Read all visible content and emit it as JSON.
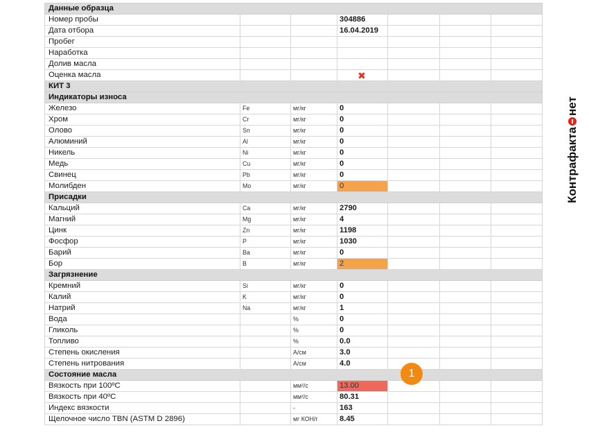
{
  "report": {
    "rows": [
      {
        "type": "section",
        "label": "Данные образца"
      },
      {
        "type": "data",
        "label": "Номер пробы",
        "symbol": "",
        "unit": "",
        "value": "304886"
      },
      {
        "type": "data",
        "label": "Дата отбора",
        "symbol": "",
        "unit": "",
        "value": "16.04.2019"
      },
      {
        "type": "data",
        "label": "Пробег",
        "symbol": "",
        "unit": "",
        "value": ""
      },
      {
        "type": "data",
        "label": "Наработка",
        "symbol": "",
        "unit": "",
        "value": ""
      },
      {
        "type": "data",
        "label": "Долив масла",
        "symbol": "",
        "unit": "",
        "value": ""
      },
      {
        "type": "data",
        "label": "Оценка масла",
        "symbol": "",
        "unit": "",
        "value": "",
        "mark": "✖"
      },
      {
        "type": "section",
        "label": "КИТ 3"
      },
      {
        "type": "section",
        "label": "Индикаторы износа"
      },
      {
        "type": "data",
        "label": "Железо",
        "symbol": "Fe",
        "unit": "мг/кг",
        "value": "0"
      },
      {
        "type": "data",
        "label": "Хром",
        "symbol": "Cr",
        "unit": "мг/кг",
        "value": "0"
      },
      {
        "type": "data",
        "label": "Олово",
        "symbol": "Sn",
        "unit": "мг/кг",
        "value": "0"
      },
      {
        "type": "data",
        "label": "Алюминий",
        "symbol": "Al",
        "unit": "мг/кг",
        "value": "0"
      },
      {
        "type": "data",
        "label": "Никель",
        "symbol": "Ni",
        "unit": "мг/кг",
        "value": "0"
      },
      {
        "type": "data",
        "label": "Медь",
        "symbol": "Cu",
        "unit": "мг/кг",
        "value": "0"
      },
      {
        "type": "data",
        "label": "Свинец",
        "symbol": "Pb",
        "unit": "мг/кг",
        "value": "0"
      },
      {
        "type": "data",
        "label": "Молибден",
        "symbol": "Mo",
        "unit": "мг/кг",
        "value": "0",
        "highlight": "orange"
      },
      {
        "type": "section",
        "label": "Присадки"
      },
      {
        "type": "data",
        "label": "Кальций",
        "symbol": "Ca",
        "unit": "мг/кг",
        "value": "2790"
      },
      {
        "type": "data",
        "label": "Магний",
        "symbol": "Mg",
        "unit": "мг/кг",
        "value": "4"
      },
      {
        "type": "data",
        "label": "Цинк",
        "symbol": "Zn",
        "unit": "мг/кг",
        "value": "1198"
      },
      {
        "type": "data",
        "label": "Фосфор",
        "symbol": "P",
        "unit": "мг/кг",
        "value": "1030"
      },
      {
        "type": "data",
        "label": "Барий",
        "symbol": "Ba",
        "unit": "мг/кг",
        "value": "0"
      },
      {
        "type": "data",
        "label": "Бор",
        "symbol": "B",
        "unit": "мг/кг",
        "value": "2",
        "highlight": "orange"
      },
      {
        "type": "section",
        "label": "Загрязнение"
      },
      {
        "type": "data",
        "label": "Кремний",
        "symbol": "Si",
        "unit": "мг/кг",
        "value": "0"
      },
      {
        "type": "data",
        "label": "Калий",
        "symbol": "K",
        "unit": "мг/кг",
        "value": "0"
      },
      {
        "type": "data",
        "label": "Натрий",
        "symbol": "Na",
        "unit": "мг/кг",
        "value": "1"
      },
      {
        "type": "data",
        "label": "Вода",
        "symbol": "",
        "unit": "%",
        "value": "0"
      },
      {
        "type": "data",
        "label": "Гликоль",
        "symbol": "",
        "unit": "%",
        "value": "0"
      },
      {
        "type": "data",
        "label": "Топливо",
        "symbol": "",
        "unit": "%",
        "value": "0.0"
      },
      {
        "type": "data",
        "label": "Степень окисления",
        "symbol": "",
        "unit": "А/см",
        "value": "3.0"
      },
      {
        "type": "data",
        "label": "Степень нитрования",
        "symbol": "",
        "unit": "А/см",
        "value": "4.0"
      },
      {
        "type": "section",
        "label": "Состояние масла"
      },
      {
        "type": "data",
        "label": "Вязкость при 100ºC",
        "symbol": "",
        "unit": "мм²/с",
        "value": "13.00",
        "highlight": "red"
      },
      {
        "type": "data",
        "label": "Вязкость при 40ºC",
        "symbol": "",
        "unit": "мм²/с",
        "value": "80.31"
      },
      {
        "type": "data",
        "label": "Индекс вязкости",
        "symbol": "",
        "unit": "-",
        "value": "163"
      },
      {
        "type": "data",
        "label": "Щелочное число TBN (ASTM D 2896)",
        "symbol": "",
        "unit": "мг КОН/г",
        "value": "8.45"
      }
    ]
  },
  "badge": {
    "number": "1"
  },
  "watermark": {
    "left": "Контрафакта",
    "right": "нет"
  },
  "colors": {
    "orange_highlight": "#f5a24a",
    "red_highlight": "#f0685a",
    "badge": "#f28a12",
    "section_bg": "#dcdcdc"
  }
}
